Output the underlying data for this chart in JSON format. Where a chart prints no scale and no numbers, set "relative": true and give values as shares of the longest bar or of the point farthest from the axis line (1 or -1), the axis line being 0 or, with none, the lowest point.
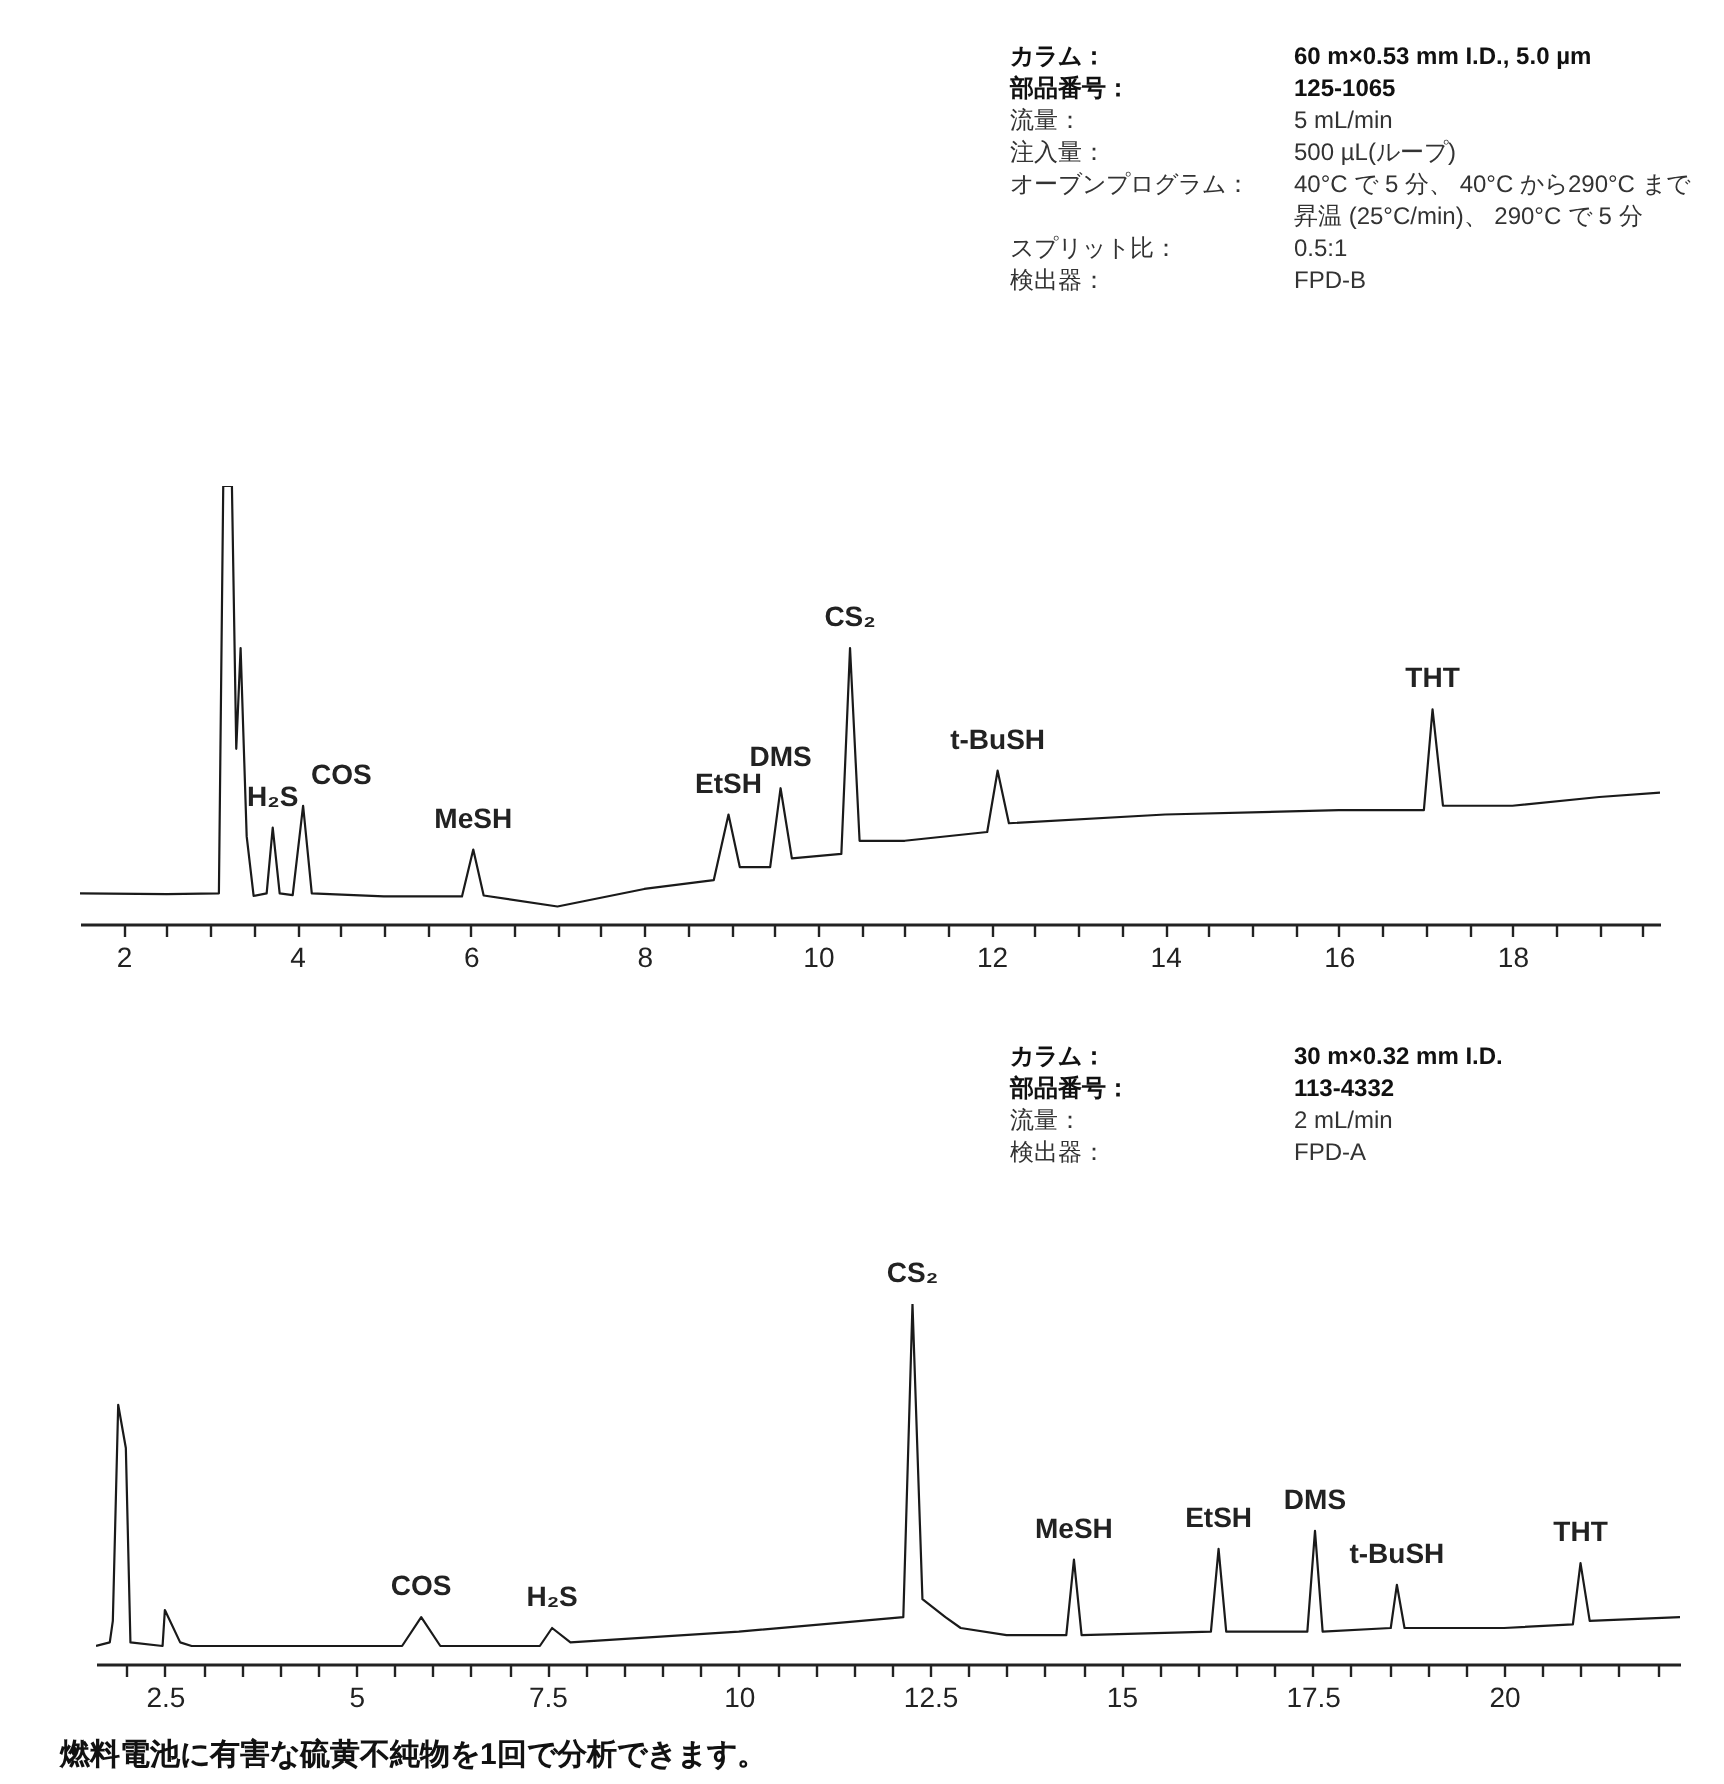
{
  "chart_data": [
    {
      "type": "line",
      "relative": true,
      "color": "#1a1a1a",
      "xlim": [
        1.5,
        19.7
      ],
      "xticks": [
        2,
        {
          "value": 2.5,
          "label": null
        },
        {
          "value": 3,
          "label": null
        },
        {
          "value": 3.5,
          "label": null
        },
        4,
        {
          "value": 4.5,
          "label": null
        },
        {
          "value": 5,
          "label": null
        },
        {
          "value": 5.5,
          "label": null
        },
        6,
        {
          "value": 6.5,
          "label": null
        },
        {
          "value": 7,
          "label": null
        },
        {
          "value": 7.5,
          "label": null
        },
        8,
        {
          "value": 8.5,
          "label": null
        },
        {
          "value": 9,
          "label": null
        },
        {
          "value": 9.5,
          "label": null
        },
        10,
        {
          "value": 10.5,
          "label": null
        },
        {
          "value": 11,
          "label": null
        },
        {
          "value": 11.5,
          "label": null
        },
        12,
        {
          "value": 12.5,
          "label": null
        },
        {
          "value": 13,
          "label": null
        },
        {
          "value": 13.5,
          "label": null
        },
        14,
        {
          "value": 14.5,
          "label": null
        },
        {
          "value": 15,
          "label": null
        },
        {
          "value": 15.5,
          "label": null
        },
        16,
        {
          "value": 16.5,
          "label": null
        },
        {
          "value": 17,
          "label": null
        },
        {
          "value": 17.5,
          "label": null
        },
        18,
        {
          "value": 18.5,
          "label": null
        },
        {
          "value": 19,
          "label": null
        },
        {
          "value": 19.5,
          "label": null
        }
      ],
      "x": [
        1.5,
        2.5,
        3.1,
        3.15,
        3.25,
        3.3,
        3.35,
        3.42,
        3.5,
        3.65,
        3.72,
        3.8,
        3.95,
        4.07,
        4.17,
        5,
        5.9,
        6.03,
        6.15,
        7.0,
        8.0,
        8.8,
        8.97,
        9.1,
        9.45,
        9.57,
        9.7,
        10.27,
        10.37,
        10.48,
        11,
        11.95,
        12.07,
        12.2,
        14,
        16,
        16.98,
        17.08,
        17.2,
        18,
        19,
        19.7
      ],
      "values": [
        0.07,
        0.068,
        0.07,
        1.0,
        1.0,
        0.4,
        0.63,
        0.2,
        0.064,
        0.07,
        0.22,
        0.07,
        0.066,
        0.27,
        0.07,
        0.063,
        0.063,
        0.17,
        0.065,
        0.04,
        0.08,
        0.1,
        0.25,
        0.13,
        0.13,
        0.31,
        0.15,
        0.16,
        0.63,
        0.19,
        0.19,
        0.21,
        0.35,
        0.23,
        0.25,
        0.26,
        0.26,
        0.49,
        0.27,
        0.27,
        0.29,
        0.3
      ],
      "annotations": [
        {
          "text": "H₂S",
          "x": 3.72,
          "y": 0.22
        },
        {
          "text": "COS",
          "x": 4.07,
          "y": 0.27
        },
        {
          "text": "MeSH",
          "x": 6.03,
          "y": 0.17
        },
        {
          "text": "EtSH",
          "x": 8.97,
          "y": 0.25
        },
        {
          "text": "DMS",
          "x": 9.57,
          "y": 0.31
        },
        {
          "text": "CS₂",
          "x": 10.37,
          "y": 0.63
        },
        {
          "text": "t-BuSH",
          "x": 12.07,
          "y": 0.35
        },
        {
          "text": "THT",
          "x": 17.08,
          "y": 0.49
        },
        "カラム：",
        "60 m×0.53 mm I.D., 5.0 µm",
        "部品番号：",
        "125-1065",
        "流量：",
        "5 mL/min",
        "注入量：",
        "500 µL(ループ)",
        "オーブンプログラム：",
        "40°C で 5 分、 40°C から290°C まで昇温 (25°C/min)、 290°C で 5 分",
        "スプリット比：",
        "0.5:1",
        "検出器：",
        "FPD-B"
      ]
    },
    {
      "type": "line",
      "relative": true,
      "color": "#1a1a1a",
      "xlim": [
        1.6,
        22.3
      ],
      "xticks": [
        {
          "value": 2,
          "label": null
        },
        2.5,
        {
          "value": 3,
          "label": null
        },
        {
          "value": 3.5,
          "label": null
        },
        {
          "value": 4,
          "label": null
        },
        {
          "value": 4.5,
          "label": null
        },
        5,
        {
          "value": 5.5,
          "label": null
        },
        {
          "value": 6,
          "label": null
        },
        {
          "value": 6.5,
          "label": null
        },
        {
          "value": 7,
          "label": null
        },
        7.5,
        {
          "value": 8,
          "label": null
        },
        {
          "value": 8.5,
          "label": null
        },
        {
          "value": 9,
          "label": null
        },
        {
          "value": 9.5,
          "label": null
        },
        10,
        {
          "value": 10.5,
          "label": null
        },
        {
          "value": 11,
          "label": null
        },
        {
          "value": 11.5,
          "label": null
        },
        {
          "value": 12,
          "label": null
        },
        12.5,
        {
          "value": 13,
          "label": null
        },
        {
          "value": 13.5,
          "label": null
        },
        {
          "value": 14,
          "label": null
        },
        {
          "value": 14.5,
          "label": null
        },
        15,
        {
          "value": 15.5,
          "label": null
        },
        {
          "value": 16,
          "label": null
        },
        {
          "value": 16.5,
          "label": null
        },
        {
          "value": 17,
          "label": null
        },
        17.5,
        {
          "value": 18,
          "label": null
        },
        {
          "value": 18.5,
          "label": null
        },
        {
          "value": 19,
          "label": null
        },
        {
          "value": 19.5,
          "label": null
        },
        20,
        {
          "value": 20.5,
          "label": null
        },
        {
          "value": 21,
          "label": null
        },
        {
          "value": 21.5,
          "label": null
        },
        {
          "value": 22,
          "label": null
        }
      ],
      "x": [
        1.6,
        1.78,
        1.82,
        1.89,
        1.99,
        2.05,
        2.47,
        2.5,
        2.7,
        2.85,
        5.6,
        5.85,
        6.1,
        7.4,
        7.56,
        7.8,
        10,
        11.6,
        12.15,
        12.27,
        12.4,
        12.7,
        12.9,
        13.5,
        14.28,
        14.38,
        14.48,
        16.17,
        16.27,
        16.37,
        17.43,
        17.53,
        17.63,
        18.52,
        18.6,
        18.7,
        20,
        20.9,
        21.0,
        21.12,
        22.3
      ],
      "values": [
        0.05,
        0.06,
        0.12,
        0.72,
        0.6,
        0.06,
        0.05,
        0.15,
        0.06,
        0.05,
        0.05,
        0.13,
        0.05,
        0.05,
        0.1,
        0.06,
        0.09,
        0.12,
        0.13,
        1.0,
        0.18,
        0.13,
        0.1,
        0.08,
        0.08,
        0.29,
        0.08,
        0.09,
        0.32,
        0.09,
        0.09,
        0.37,
        0.09,
        0.1,
        0.22,
        0.1,
        0.1,
        0.11,
        0.28,
        0.12,
        0.13
      ],
      "annotations": [
        {
          "text": "COS",
          "x": 5.85,
          "y": 0.13
        },
        {
          "text": "H₂S",
          "x": 7.56,
          "y": 0.1
        },
        {
          "text": "CS₂",
          "x": 12.27,
          "y": 1.0
        },
        {
          "text": "MeSH",
          "x": 14.38,
          "y": 0.29
        },
        {
          "text": "EtSH",
          "x": 16.27,
          "y": 0.32
        },
        {
          "text": "DMS",
          "x": 17.53,
          "y": 0.37
        },
        {
          "text": "t-BuSH",
          "x": 18.6,
          "y": 0.22
        },
        {
          "text": "THT",
          "x": 21.0,
          "y": 0.28
        },
        "カラム：",
        "30 m×0.32 mm I.D.",
        "部品番号：",
        "113-4332",
        "流量：",
        "2 mL/min",
        "検出器：",
        "FPD-A",
        "燃料電池に有害な硫黄不純物を1回で分析できます。"
      ]
    }
  ]
}
